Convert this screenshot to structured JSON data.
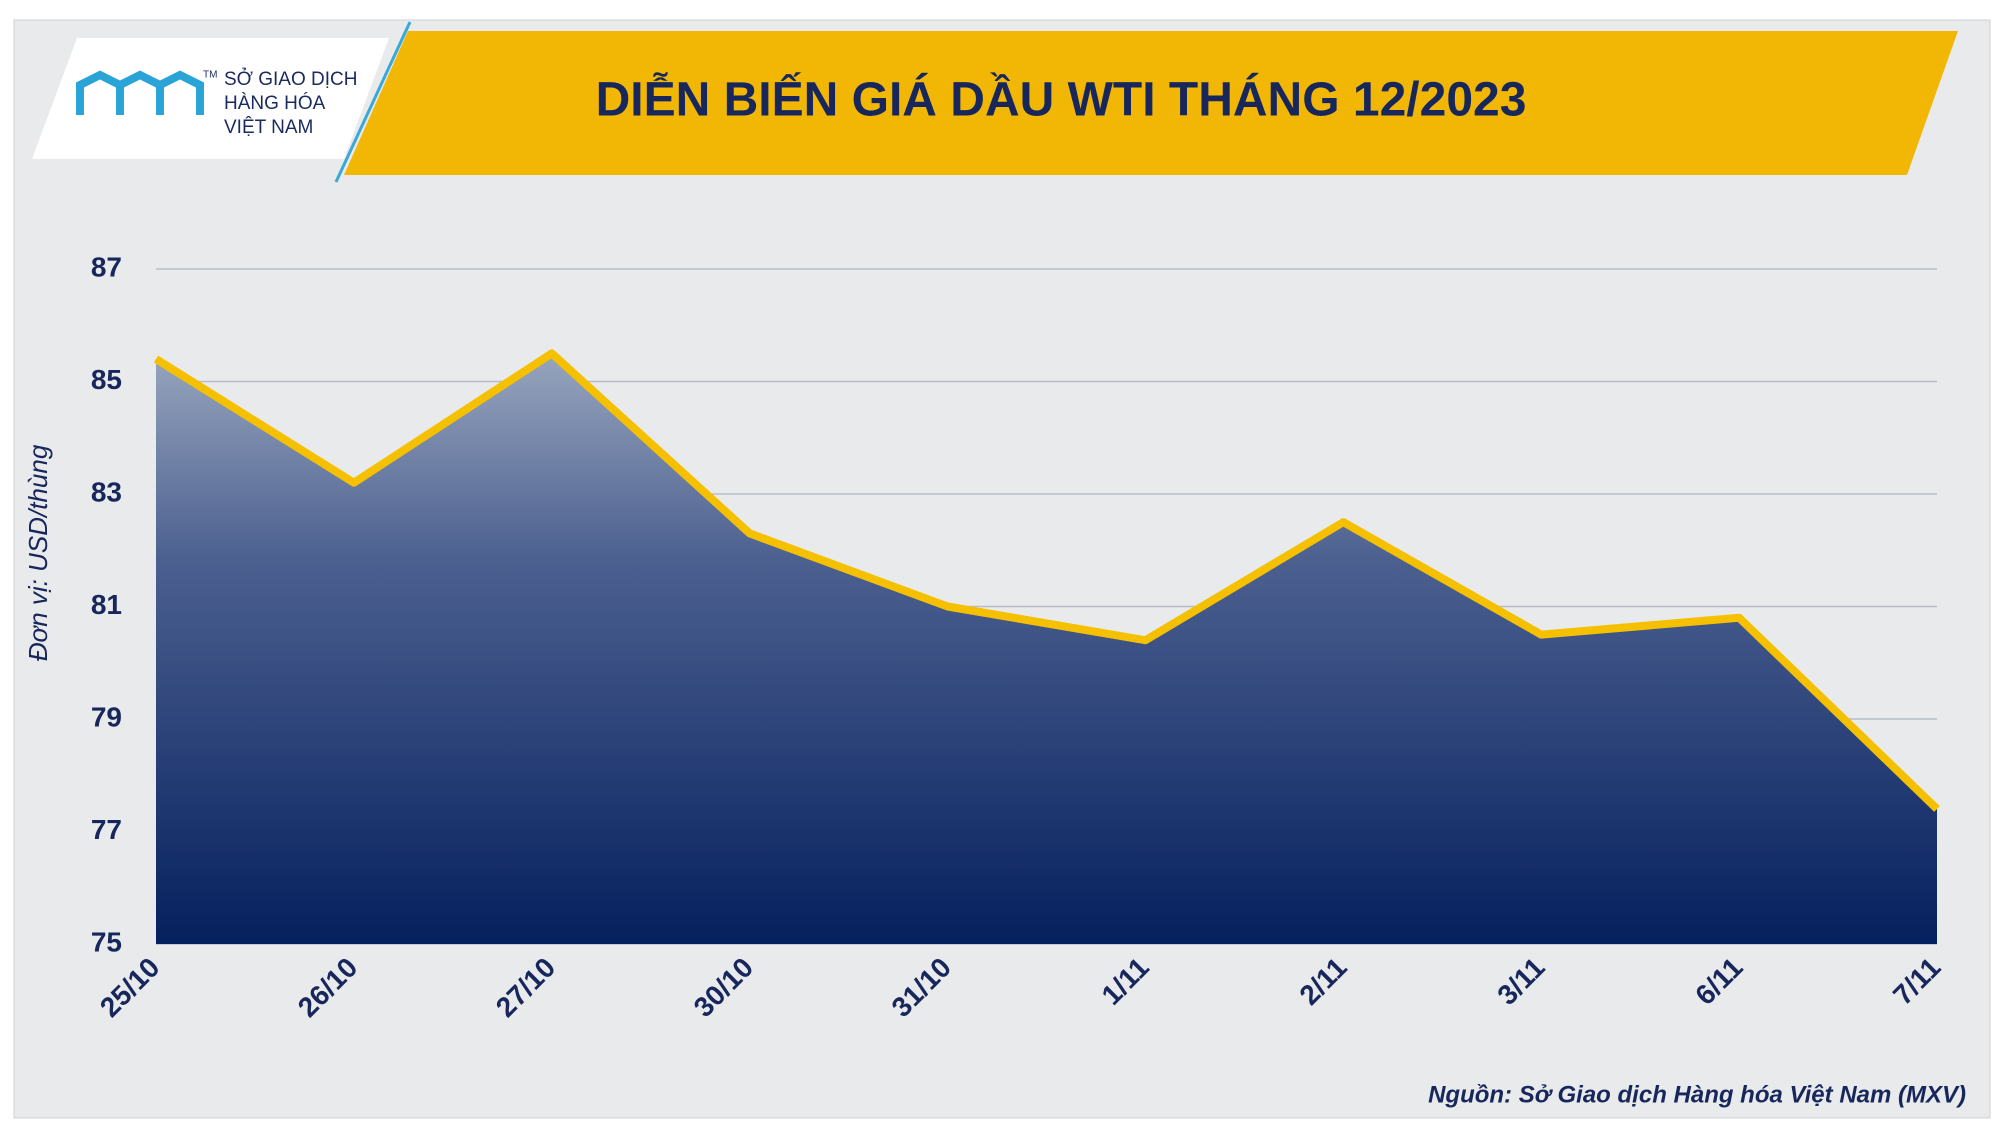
{
  "header": {
    "logo_tm": "TM",
    "logo_lines": [
      "SỞ GIAO DỊCH",
      "HÀNG HÓA",
      "VIỆT NAM"
    ]
  },
  "chart_data": {
    "type": "area",
    "title": "DIỄN BIẾN GIÁ DẦU WTI THÁNG 12/2023",
    "y_label": "Đơn vị: USD/thùng",
    "source": "Nguồn: Sở Giao dịch Hàng hóa Việt Nam (MXV)",
    "categories": [
      "25/10",
      "26/10",
      "27/10",
      "30/10",
      "31/10",
      "1/11",
      "2/11",
      "3/11",
      "6/11",
      "7/11"
    ],
    "values": [
      85.4,
      83.2,
      85.5,
      82.3,
      81.0,
      80.4,
      82.5,
      80.5,
      80.8,
      77.4
    ],
    "color": "#f5c000",
    "ylim": [
      75,
      87
    ],
    "yticks": [
      75,
      77,
      79,
      81,
      83,
      85,
      87
    ],
    "grid": true
  }
}
